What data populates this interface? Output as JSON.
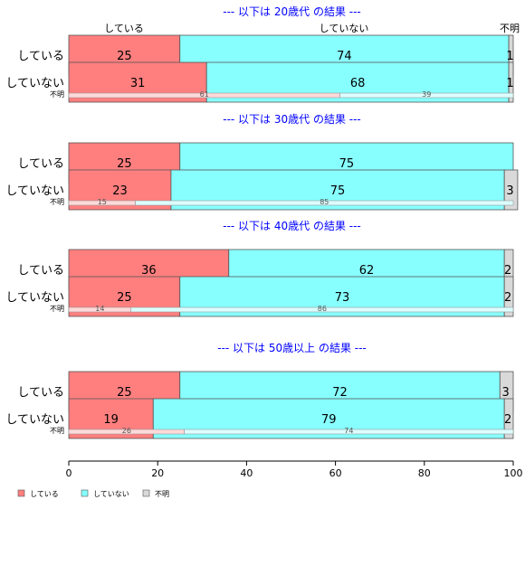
{
  "chart_data": {
    "type": "bar",
    "orientation": "horizontal",
    "stacked": true,
    "xlim": [
      0,
      100
    ],
    "x_ticks": [
      "0",
      "20",
      "40",
      "60",
      "80",
      "100"
    ],
    "colors": {
      "している": "#ff7f7f",
      "していない": "#88ffff",
      "不明": "#d9d9d9",
      "title": "#0000ff",
      "border": "#555555"
    },
    "top_category_labels": [
      "している",
      "していない",
      "不明"
    ],
    "legend": [
      "している",
      "していない",
      "不明"
    ],
    "legend_position": "bottom-left",
    "panels": [
      {
        "title": "--- 以下は 20歳代 の結果 ---",
        "rows": [
          {
            "label": "している",
            "values": [
              25,
              74,
              1
            ]
          },
          {
            "label": "していない",
            "values": [
              31,
              68,
              1
            ]
          }
        ],
        "unknown_row": {
          "label": "不明",
          "values": [
            61,
            39
          ]
        }
      },
      {
        "title": "--- 以下は 30歳代 の結果 ---",
        "rows": [
          {
            "label": "している",
            "values": [
              25,
              75,
              0
            ]
          },
          {
            "label": "していない",
            "values": [
              23,
              75,
              3
            ]
          }
        ],
        "unknown_row": {
          "label": "不明",
          "values": [
            15,
            85
          ]
        }
      },
      {
        "title": "--- 以下は 40歳代 の結果 ---",
        "rows": [
          {
            "label": "している",
            "values": [
              36,
              62,
              2
            ]
          },
          {
            "label": "していない",
            "values": [
              25,
              73,
              2
            ]
          }
        ],
        "unknown_row": {
          "label": "不明",
          "values": [
            14,
            86
          ]
        }
      },
      {
        "title": "--- 以下は 50歳以上 の結果 ---",
        "rows": [
          {
            "label": "している",
            "values": [
              25,
              72,
              3
            ]
          },
          {
            "label": "していない",
            "values": [
              19,
              79,
              2
            ]
          }
        ],
        "unknown_row": {
          "label": "不明",
          "values": [
            26,
            74
          ]
        }
      }
    ]
  }
}
